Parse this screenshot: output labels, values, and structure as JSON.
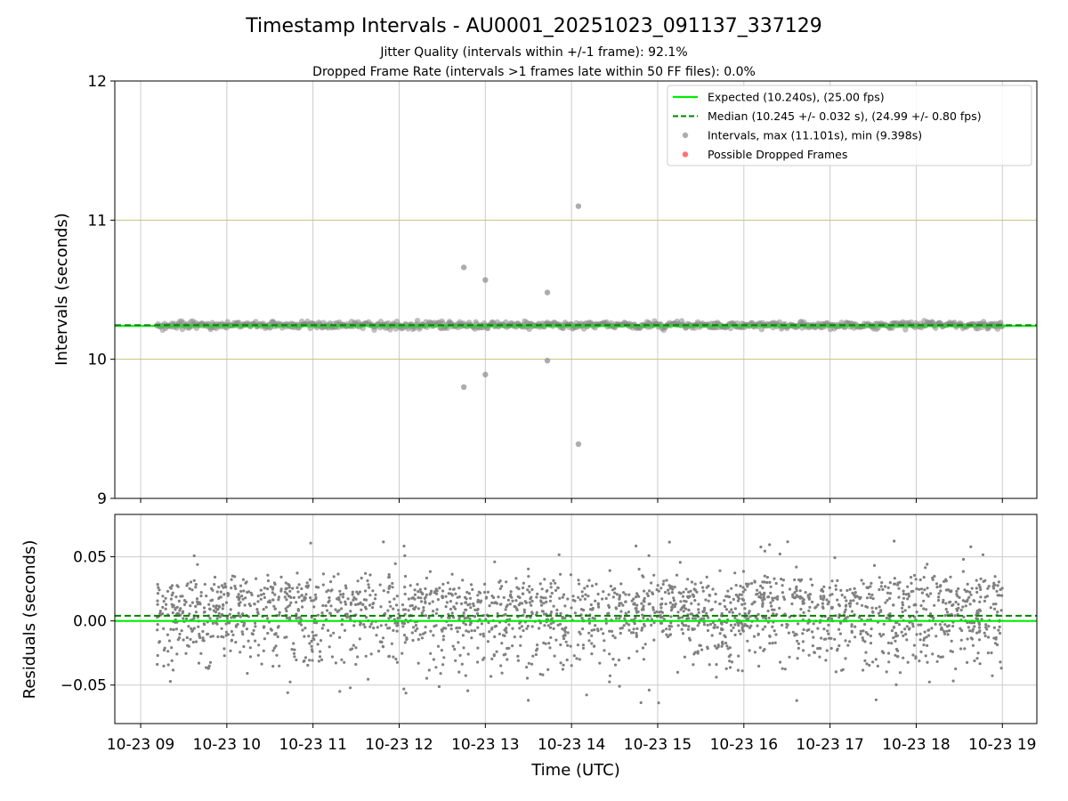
{
  "chart_data": {
    "title": "Timestamp Intervals - AU0001_20251023_091137_337129",
    "subtitles": [
      "Jitter Quality (intervals within +/-1 frame): 92.1%",
      "Dropped Frame Rate (intervals >1 frames late within 50 FF files): 0.0%"
    ],
    "xlabel": "Time (UTC)",
    "x_time_range_hours": [
      8.7,
      19.4
    ],
    "x_ticks": [
      {
        "hour": 9,
        "label": "10-23 09"
      },
      {
        "hour": 10,
        "label": "10-23 10"
      },
      {
        "hour": 11,
        "label": "10-23 11"
      },
      {
        "hour": 12,
        "label": "10-23 12"
      },
      {
        "hour": 13,
        "label": "10-23 13"
      },
      {
        "hour": 14,
        "label": "10-23 14"
      },
      {
        "hour": 15,
        "label": "10-23 15"
      },
      {
        "hour": 16,
        "label": "10-23 16"
      },
      {
        "hour": 17,
        "label": "10-23 17"
      },
      {
        "hour": 18,
        "label": "10-23 18"
      },
      {
        "hour": 19,
        "label": "10-23 19"
      }
    ],
    "data_time_range_hours": [
      9.19,
      19.0
    ],
    "top": {
      "type": "scatter",
      "ylabel": "Intervals (seconds)",
      "ylim": [
        9,
        12
      ],
      "y_ticks": [
        9,
        10,
        11,
        12
      ],
      "tolerance_lines": [
        10,
        11
      ],
      "expected": 10.24,
      "median": 10.245,
      "band_center": 10.245,
      "band_spread": 0.032,
      "outliers": [
        {
          "hour": 12.75,
          "value": 10.66
        },
        {
          "hour": 12.75,
          "value": 9.8
        },
        {
          "hour": 13.0,
          "value": 10.57
        },
        {
          "hour": 13.0,
          "value": 9.89
        },
        {
          "hour": 13.72,
          "value": 10.48
        },
        {
          "hour": 13.72,
          "value": 9.99
        },
        {
          "hour": 14.08,
          "value": 11.1
        },
        {
          "hour": 14.08,
          "value": 9.39
        }
      ]
    },
    "bottom": {
      "type": "scatter",
      "ylabel": "Residuals (seconds)",
      "ylim": [
        -0.08,
        0.083
      ],
      "y_ticks": [
        {
          "value": 0.05,
          "label": "0.05"
        },
        {
          "value": 0.0,
          "label": "0.00"
        },
        {
          "value": -0.05,
          "label": "−0.05"
        }
      ],
      "expected_residual": 0.0,
      "median_residual": 0.004,
      "max_residual": 0.08,
      "min_residual": -0.074
    },
    "legend": {
      "placement": "upper-right",
      "entries": [
        {
          "label": "Expected (10.240s), (25.00 fps)",
          "kind": "line",
          "color": "#00ee00"
        },
        {
          "label": "Median (10.245 +/- 0.032 s), (24.99 +/- 0.80 fps)",
          "kind": "dashed",
          "color": "#008000"
        },
        {
          "label": "Intervals, max (11.101s), min (9.398s)",
          "kind": "dot",
          "color": "#999999"
        },
        {
          "label": "Possible Dropped Frames",
          "kind": "dot",
          "color": "#ff5050"
        }
      ]
    },
    "colors": {
      "expected": "#00ee00",
      "median": "#008000",
      "intervals": "#808080",
      "tolerance": "#c8c080",
      "grid": "#cccccc"
    }
  }
}
